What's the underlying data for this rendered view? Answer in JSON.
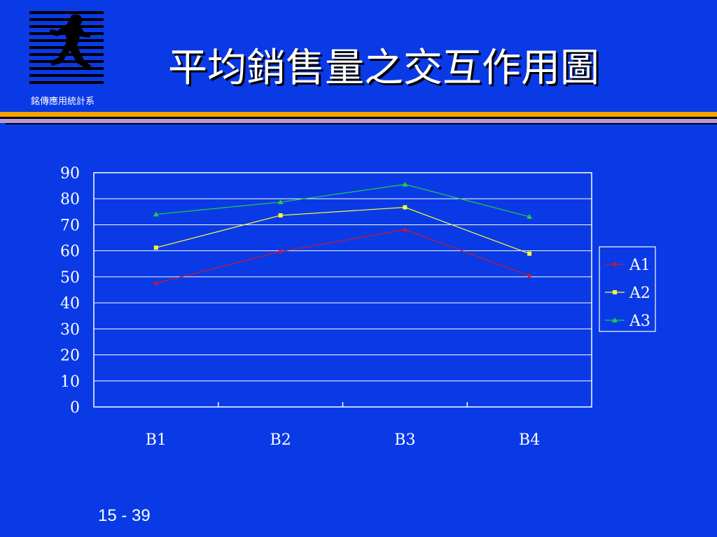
{
  "header": {
    "title": "平均銷售量之交互作用圖",
    "dept": "銘傳應用統計系"
  },
  "footer": {
    "slide_number": "15 - 39"
  },
  "colors": {
    "background": "#0a3ae6",
    "A1": "#d0162a",
    "A2": "#ffff33",
    "A3": "#22cc44"
  },
  "chart_data": {
    "type": "line",
    "categories": [
      "B1",
      "B2",
      "B3",
      "B4"
    ],
    "series": [
      {
        "name": "A1",
        "values": [
          47.5,
          59.7,
          68.1,
          50.4
        ],
        "marker": "diamond"
      },
      {
        "name": "A2",
        "values": [
          61.2,
          73.6,
          76.7,
          58.9
        ],
        "marker": "square"
      },
      {
        "name": "A3",
        "values": [
          74.0,
          78.7,
          85.5,
          73.1
        ],
        "marker": "triangle"
      }
    ],
    "ylim": [
      0,
      90
    ],
    "yticks": [
      "0",
      "10",
      "20",
      "30",
      "40",
      "50",
      "60",
      "70",
      "80",
      "90"
    ],
    "grid": true,
    "legend": "right"
  }
}
